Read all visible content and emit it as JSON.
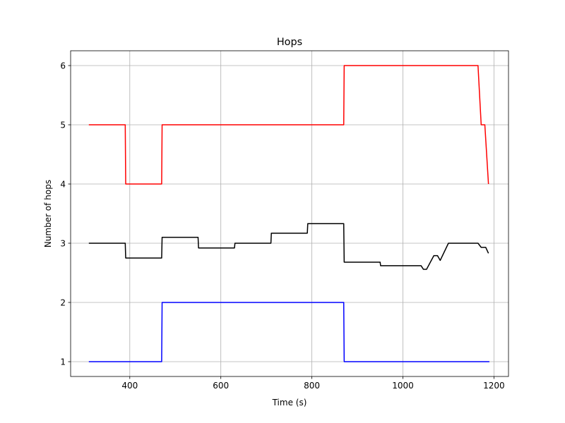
{
  "chart_data": {
    "type": "line",
    "title": "Hops",
    "xlabel": "Time (s)",
    "ylabel": "Number of hops",
    "xlim": [
      270,
      1232
    ],
    "ylim": [
      0.75,
      6.25
    ],
    "xticks": [
      400,
      600,
      800,
      1000,
      1200
    ],
    "yticks": [
      1,
      2,
      3,
      4,
      5,
      6
    ],
    "grid": true,
    "series": [
      {
        "color": "#ff0000",
        "points": [
          [
            310,
            5
          ],
          [
            390,
            5
          ],
          [
            391,
            4
          ],
          [
            470,
            4
          ],
          [
            471,
            5
          ],
          [
            870,
            5
          ],
          [
            871,
            6
          ],
          [
            1165,
            6
          ],
          [
            1172,
            5
          ],
          [
            1180,
            5
          ],
          [
            1188,
            4
          ]
        ]
      },
      {
        "color": "#000000",
        "points": [
          [
            310,
            3
          ],
          [
            390,
            3
          ],
          [
            391,
            2.75
          ],
          [
            470,
            2.75
          ],
          [
            471,
            3.1
          ],
          [
            550,
            3.1
          ],
          [
            551,
            2.92
          ],
          [
            630,
            2.92
          ],
          [
            631,
            3
          ],
          [
            710,
            3
          ],
          [
            711,
            3.17
          ],
          [
            790,
            3.17
          ],
          [
            791,
            3.33
          ],
          [
            870,
            3.33
          ],
          [
            871,
            2.68
          ],
          [
            950,
            2.68
          ],
          [
            951,
            2.62
          ],
          [
            1040,
            2.62
          ],
          [
            1045,
            2.56
          ],
          [
            1052,
            2.56
          ],
          [
            1068,
            2.79
          ],
          [
            1076,
            2.79
          ],
          [
            1082,
            2.71
          ],
          [
            1100,
            3
          ],
          [
            1165,
            3
          ],
          [
            1172,
            2.93
          ],
          [
            1182,
            2.93
          ],
          [
            1188,
            2.83
          ]
        ]
      },
      {
        "color": "#0000ff",
        "points": [
          [
            310,
            1
          ],
          [
            470,
            1
          ],
          [
            471,
            2
          ],
          [
            870,
            2
          ],
          [
            871,
            1
          ],
          [
            1190,
            1
          ]
        ]
      }
    ]
  }
}
